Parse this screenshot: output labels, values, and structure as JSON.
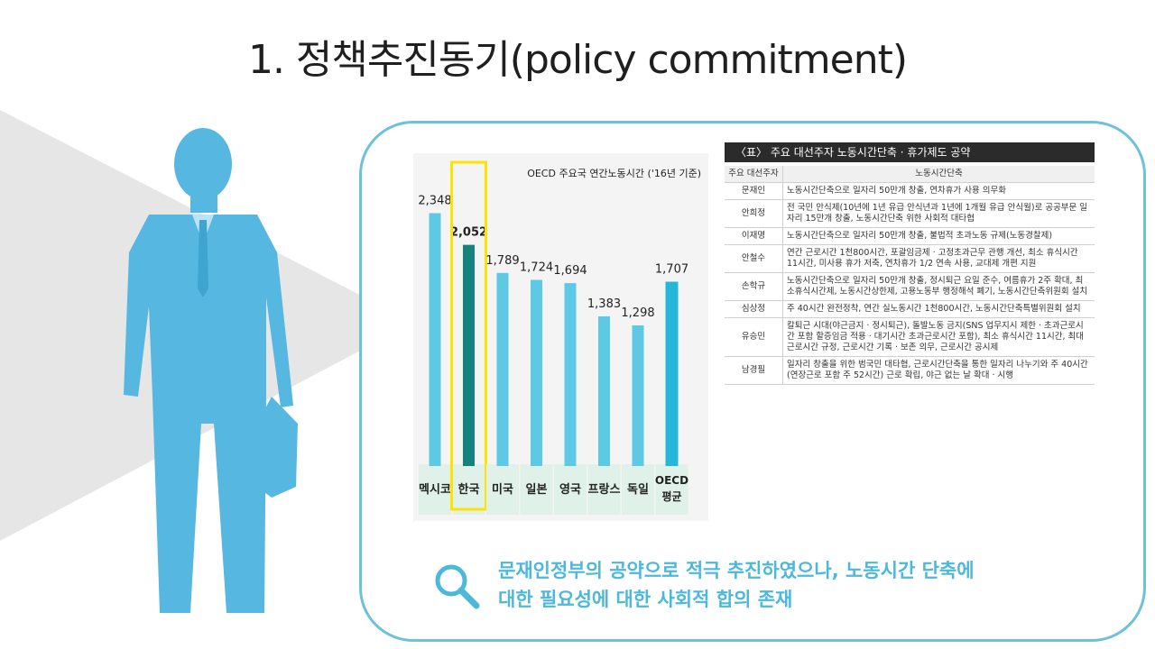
{
  "slide": {
    "title": "1. 정책추진동기(policy commitment)",
    "footnote_line1": "문재인정부의 공약으로 적극 추진하였으나, 노동시간 단축에",
    "footnote_line2": "대한 필요성에 대한 사회적 합의 존재",
    "icons": [
      "person-silhouette-icon",
      "magnifier-icon"
    ],
    "colors": {
      "accent": "#4cb8dc",
      "border": "#6fc1d9",
      "silhouette": "#56b8e0",
      "bar": "#5ec9e3",
      "highlight_bar": "#14827e",
      "highlight_box": "#ffe200"
    }
  },
  "chart_data": {
    "type": "bar",
    "title": "OECD 주요국 연간노동시간 ('16년 기준)",
    "categories": [
      "멕시코",
      "한국",
      "미국",
      "일본",
      "영국",
      "프랑스",
      "독일",
      "OECD 평균"
    ],
    "values": [
      2348,
      2052,
      1789,
      1724,
      1694,
      1383,
      1298,
      1707
    ],
    "value_labels": [
      "2,348",
      "2,052",
      "1,789",
      "1,724",
      "1,694",
      "1,383",
      "1,298",
      "1,707"
    ],
    "highlight": "한국"
  },
  "table": {
    "title": "〈표〉 주요 대선주자 노동시간단축 · 휴가제도 공약",
    "headers": [
      "주요 대선주자",
      "노동시간단축"
    ],
    "rows": [
      {
        "name": "문재인",
        "text": "노동시간단축으로 일자리 50만개 창출, 연차휴가 사용 의무화"
      },
      {
        "name": "안희정",
        "text": "전 국민 안식제(10년에 1년 유급 안식년과 1년에 1개월 유급 안식월)로 공공부문 일자리 15만개 창출, 노동시간단축 위한 사회적 대타협"
      },
      {
        "name": "이재명",
        "text": "노동시간단축으로 일자리 50만개 창출, 불법적 초과노동 규제(노동경찰제)"
      },
      {
        "name": "안철수",
        "text": "연간 근로시간 1천800시간, 포괄임금제 · 고정초과근무 관행 개선, 최소 휴식시간 11시간, 미사용 휴가 저축, 연차휴가 1/2 연속 사용, 교대제 개편 지원"
      },
      {
        "name": "손학규",
        "text": "노동시간단축으로 일자리 50만개 창출, 정시퇴근 요일 준수, 여름휴가 2주 확대, 최소휴식시간제, 노동시간상한제, 고용노동부 행정해석 폐기, 노동시간단축위원회 설치"
      },
      {
        "name": "심상정",
        "text": "주 40시간 완전정착, 연간 실노동시간 1천800시간, 노동시간단축특별위원회 설치"
      },
      {
        "name": "유승민",
        "text": "칼퇴근 시대(야근금지 · 정시퇴근), 돌발노동 금지(SNS 업무지시 제한 · 초과근로시간 포함 할증임금 적용 · 대기시간 초과근로시간 포함), 최소 휴식시간 11시간, 최대근로시간 규정, 근로시간 기록 · 보존 의무, 근로시간 공시제"
      },
      {
        "name": "남경필",
        "text": "일자리 창출을 위한 범국민 대타협, 근로시간단축을 통한 일자리 나누기와 주 40시간(연장근로 포함 주 52시간) 근로 확립, 야근 없는 날 확대 · 시행"
      }
    ]
  }
}
